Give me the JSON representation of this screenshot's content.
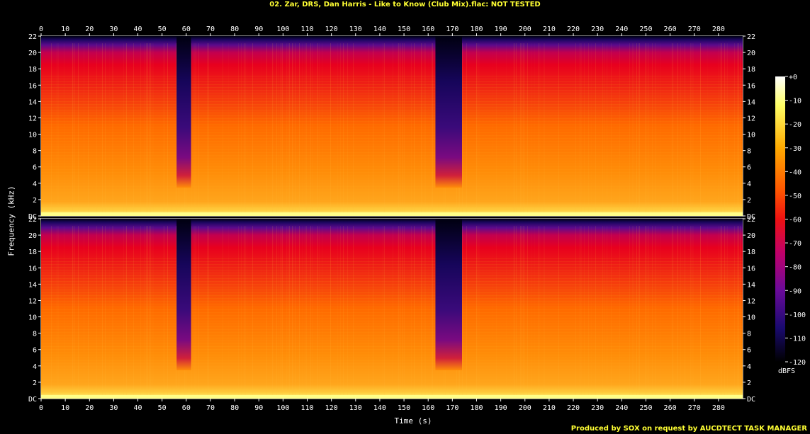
{
  "chart_data": {
    "type": "heatmap",
    "title": "02. Zar, DRS, Dan Harris - Like to Know (Club Mix).flac: NOT TESTED",
    "xlabel": "Time (s)",
    "ylabel": "Frequency (kHz)",
    "colorbar_label": "dBFS",
    "xlim": [
      0,
      290
    ],
    "ylim": [
      0,
      22
    ],
    "x_ticks": [
      "0",
      "10",
      "20",
      "30",
      "40",
      "50",
      "60",
      "70",
      "80",
      "90",
      "100",
      "110",
      "120",
      "130",
      "140",
      "150",
      "160",
      "170",
      "180",
      "190",
      "200",
      "210",
      "220",
      "230",
      "240",
      "250",
      "260",
      "270",
      "280"
    ],
    "y_ticks": [
      "DC",
      "2",
      "4",
      "6",
      "8",
      "10",
      "12",
      "14",
      "16",
      "18",
      "20",
      "22"
    ],
    "colorbar_range": [
      -120,
      0
    ],
    "colorbar_ticks": [
      "+0",
      "-10",
      "-20",
      "-30",
      "-40",
      "-50",
      "-60",
      "-70",
      "-80",
      "-90",
      "-100",
      "-110",
      "-120"
    ],
    "channels": 2,
    "quiet_sections_s": [
      [
        56,
        62
      ],
      [
        163,
        174
      ]
    ],
    "typical_cutoff_khz": 21,
    "colors": {
      "hot": "#ffff66",
      "mid": "#ff6a00",
      "high": "#e8001e",
      "edge": "#5c0a8c",
      "floor": "#000010"
    },
    "footer": "Produced by SOX on request by AUCDTECT TASK MANAGER"
  }
}
